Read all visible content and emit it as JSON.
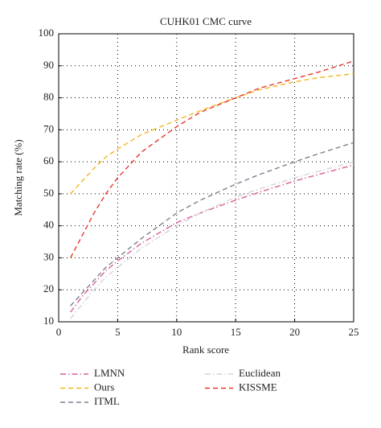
{
  "chart_data": {
    "type": "line",
    "title": "CUHK01 CMC curve",
    "x_label": "Rank score",
    "y_label": "Matching rate (%)",
    "x": [
      1,
      2,
      3,
      4,
      5,
      7,
      10,
      12,
      15,
      17,
      20,
      22,
      25
    ],
    "series": [
      {
        "name": "LMNN",
        "color": "#d9609a",
        "style": "dashdot",
        "values": [
          13,
          18,
          22,
          26,
          29,
          34.5,
          41,
          44,
          48,
          50.5,
          54,
          56,
          59
        ]
      },
      {
        "name": "Ours",
        "color": "#f2b71e",
        "style": "dashed",
        "values": [
          50,
          54,
          58,
          61.5,
          64,
          68.5,
          73,
          76,
          80,
          82.5,
          85,
          86.3,
          87.5
        ]
      },
      {
        "name": "ITML",
        "color": "#7f7f8f",
        "style": "dashed",
        "values": [
          15,
          19,
          23,
          27,
          30,
          36,
          44,
          48,
          53,
          56,
          60,
          62.5,
          66
        ]
      },
      {
        "name": "Euclidean",
        "color": "#d4d4d4",
        "style": "dashdot",
        "values": [
          11,
          15.5,
          20,
          24,
          27,
          33,
          40,
          44,
          49,
          51.5,
          55,
          57,
          60
        ]
      },
      {
        "name": "KISSME",
        "color": "#e8382a",
        "style": "dashed",
        "values": [
          30,
          37,
          44,
          50,
          55,
          63,
          71,
          75.5,
          80,
          83,
          86,
          88,
          91.5
        ]
      }
    ],
    "xlim": [
      0,
      25
    ],
    "xticks": [
      0,
      5,
      10,
      15,
      20,
      25
    ],
    "ylim": [
      10,
      100
    ],
    "yticks": [
      10,
      20,
      30,
      40,
      50,
      60,
      70,
      80,
      90,
      100
    ],
    "grid": true,
    "legend": "bottom"
  }
}
